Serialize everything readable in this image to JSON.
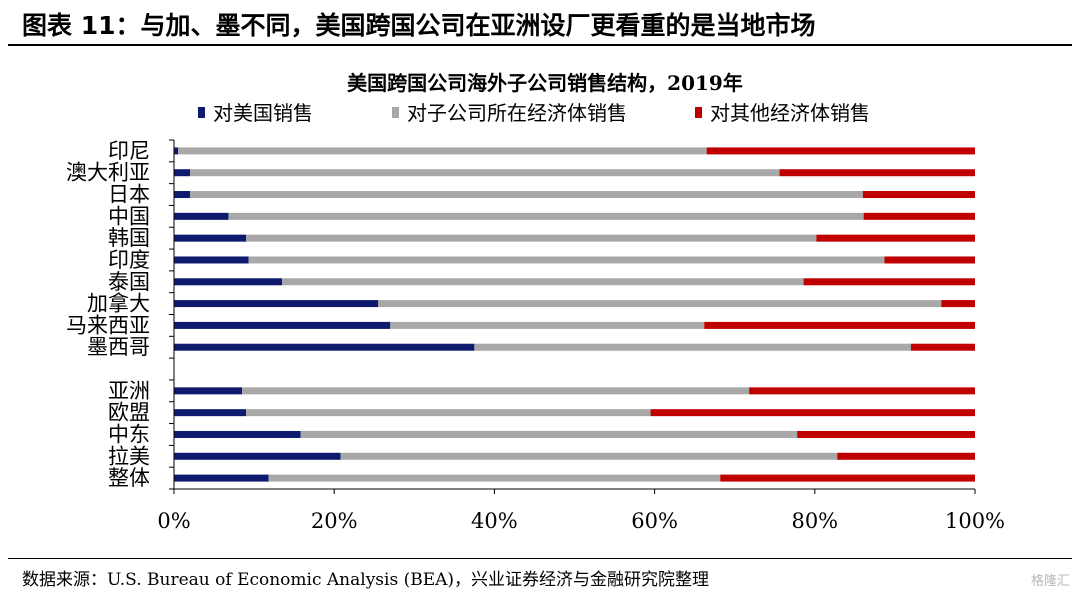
{
  "figure": {
    "title": "图表 11：与加、墨不同，美国跨国公司在亚洲设厂更看重的是当地市场",
    "source": "数据来源：U.S. Bureau of Economic Analysis (BEA)，兴业证券经济与金融研究院整理",
    "watermark": "格隆汇"
  },
  "chart_data": {
    "type": "bar",
    "orientation": "horizontal",
    "stacked": true,
    "percent_stacked": true,
    "title": "美国跨国公司海外子公司销售结构，2019年",
    "categories": [
      "印尼",
      "澳大利亚",
      "日本",
      "中国",
      "韩国",
      "印度",
      "泰国",
      "加拿大",
      "马来西亚",
      "墨西哥",
      "",
      "亚洲",
      "欧盟",
      "中东",
      "拉美",
      "整体"
    ],
    "series": [
      {
        "name": "对美国销售",
        "color": "#0d1a6e",
        "values": [
          0.5,
          2.0,
          2.0,
          6.8,
          9.0,
          9.3,
          13.5,
          25.5,
          27.0,
          37.5,
          null,
          8.5,
          9.0,
          15.8,
          20.8,
          11.8
        ]
      },
      {
        "name": "对子公司所在经济体销售",
        "color": "#a8a8a8",
        "values": [
          66.0,
          73.6,
          84.0,
          79.3,
          71.2,
          79.4,
          65.1,
          70.3,
          39.2,
          54.5,
          null,
          63.3,
          50.5,
          62.0,
          62.0,
          56.4
        ]
      },
      {
        "name": "对其他经济体销售",
        "color": "#c00000",
        "values": [
          33.5,
          24.4,
          14.0,
          13.9,
          19.8,
          11.3,
          21.4,
          4.2,
          33.8,
          8.0,
          null,
          28.2,
          40.5,
          22.2,
          17.2,
          31.8
        ]
      }
    ],
    "x_ticks": [
      "0%",
      "20%",
      "40%",
      "60%",
      "80%",
      "100%"
    ],
    "xlim": [
      0,
      100
    ],
    "legend": "top",
    "grid": false
  }
}
